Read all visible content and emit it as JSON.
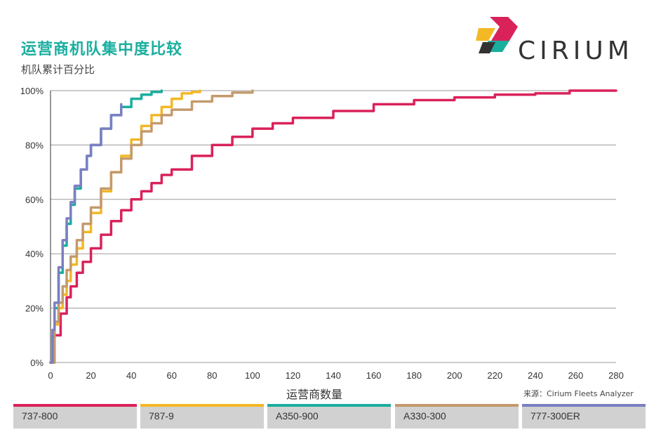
{
  "header": {
    "title": "运营商机队集中度比较",
    "subtitle": "机队累计百分比",
    "brand": "CIRIUM"
  },
  "footer": {
    "xlabel": "运营商数量",
    "source": "来源：Cirium Fleets Analyzer"
  },
  "chart_data": {
    "type": "line",
    "title": "运营商机队集中度比较",
    "ylabel": "机队累计百分比",
    "xlabel": "运营商数量",
    "xlim": [
      0,
      280
    ],
    "ylim": [
      0,
      100
    ],
    "x_ticks": [
      "0",
      "20",
      "40",
      "60",
      "80",
      "100",
      "120",
      "140",
      "160",
      "180",
      "200",
      "220",
      "240",
      "260",
      "280"
    ],
    "y_ticks": [
      "0%",
      "20%",
      "40%",
      "60%",
      "80%",
      "100%"
    ],
    "grid": true,
    "legend_position": "bottom",
    "series": [
      {
        "name": "737-800",
        "color": "#d9225a",
        "x": [
          0,
          2,
          5,
          8,
          10,
          13,
          16,
          20,
          25,
          30,
          35,
          40,
          45,
          50,
          55,
          60,
          70,
          80,
          90,
          100,
          110,
          120,
          140,
          160,
          180,
          200,
          220,
          240,
          257,
          280
        ],
        "y": [
          0,
          10,
          18,
          24,
          28,
          33,
          37,
          42,
          47,
          52,
          56,
          60,
          63,
          66,
          69,
          71,
          76,
          80,
          83,
          86,
          88,
          90,
          92.5,
          95,
          96.5,
          97.5,
          98.5,
          99,
          100,
          100
        ]
      },
      {
        "name": "787-9",
        "color": "#f3b823",
        "x": [
          0,
          2,
          4,
          6,
          8,
          10,
          13,
          16,
          20,
          25,
          30,
          35,
          40,
          45,
          50,
          55,
          60,
          65,
          70,
          74
        ],
        "y": [
          0,
          14,
          20,
          25,
          30,
          36,
          42,
          48,
          55,
          63,
          70,
          76,
          82,
          87,
          91,
          94,
          97,
          99,
          99.5,
          100
        ]
      },
      {
        "name": "A350-900",
        "color": "#1aae9f",
        "x": [
          0,
          1,
          2,
          4,
          6,
          8,
          10,
          12,
          15,
          18,
          20,
          25,
          30,
          35,
          40,
          45,
          50,
          55
        ],
        "y": [
          0,
          10,
          20,
          33,
          43,
          51,
          58,
          64,
          71,
          76,
          80,
          86,
          91,
          94,
          97,
          98.5,
          99.5,
          100
        ]
      },
      {
        "name": "A330-300",
        "color": "#c49a6c",
        "x": [
          0,
          2,
          4,
          6,
          8,
          10,
          13,
          16,
          20,
          25,
          30,
          35,
          40,
          45,
          50,
          55,
          60,
          70,
          80,
          90,
          100
        ],
        "y": [
          0,
          15,
          22,
          28,
          34,
          39,
          45,
          51,
          57,
          64,
          70,
          75,
          80,
          85,
          88,
          91,
          93,
          96,
          98,
          99.3,
          100
        ]
      },
      {
        "name": "777-300ER",
        "color": "#7b7fc2",
        "x": [
          0,
          1,
          2,
          4,
          6,
          8,
          10,
          12,
          15,
          18,
          20,
          25,
          30,
          35
        ],
        "y": [
          0,
          12,
          22,
          35,
          45,
          53,
          59,
          65,
          71,
          76,
          80,
          86,
          91,
          95
        ]
      }
    ]
  }
}
